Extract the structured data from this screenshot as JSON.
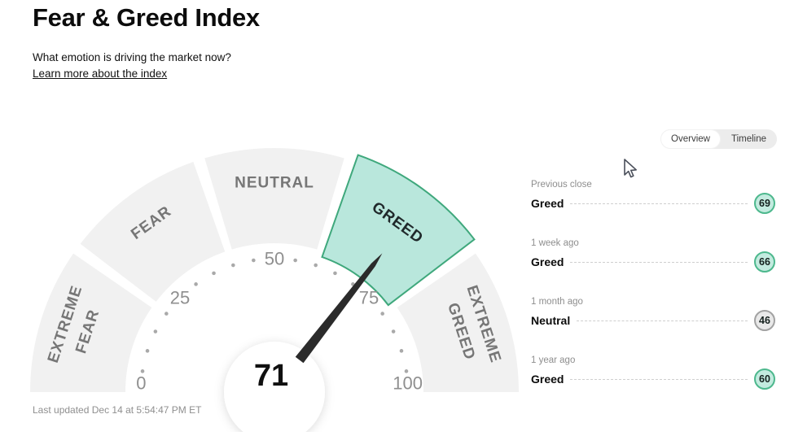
{
  "header": {
    "title": "Fear & Greed Index",
    "subtitle": "What emotion is driving the market now?",
    "link": "Learn more about the index"
  },
  "view_toggle": {
    "options": [
      "Overview",
      "Timeline"
    ],
    "selected": "Overview"
  },
  "chart_data": {
    "type": "gauge",
    "title": "Fear & Greed Index",
    "value": 71,
    "rating": "Greed",
    "axis": {
      "min": 0,
      "max": 100,
      "tick_numbers": [
        0,
        25,
        50,
        75,
        100
      ],
      "dot_step": 5
    },
    "segments": [
      {
        "label": "Extreme Fear",
        "lines": [
          "EXTREME",
          "FEAR"
        ],
        "highlighted": false
      },
      {
        "label": "Fear",
        "lines": [
          "FEAR"
        ],
        "highlighted": false
      },
      {
        "label": "Neutral",
        "lines": [
          "NEUTRAL"
        ],
        "highlighted": false
      },
      {
        "label": "Greed",
        "lines": [
          "GREED"
        ],
        "highlighted": true
      },
      {
        "label": "Extreme Greed",
        "lines": [
          "EXTREME",
          "GREED"
        ],
        "highlighted": false
      }
    ]
  },
  "history": {
    "rows": [
      {
        "label": "Previous close",
        "rating": "Greed",
        "value": 69,
        "tone": "greed"
      },
      {
        "label": "1 week ago",
        "rating": "Greed",
        "value": 66,
        "tone": "greed"
      },
      {
        "label": "1 month ago",
        "rating": "Neutral",
        "value": 46,
        "tone": "neutral"
      },
      {
        "label": "1 year ago",
        "rating": "Greed",
        "value": 60,
        "tone": "greed"
      }
    ]
  },
  "footer": {
    "last_updated": "Last updated Dec 14 at 5:54:47 PM ET"
  },
  "colors": {
    "band": "#f1f1f1",
    "greed_fill": "#b9e7dc",
    "greed_border": "#3fa87c",
    "segment_label": "#767676",
    "segment_label_active": "#20292b",
    "needle": "#2b2b2b",
    "dot": "#a9a9a9",
    "badge_greed_fill": "#c3ebdf",
    "badge_greed_border": "#4db88d",
    "badge_neutral_fill": "#e9e9e9",
    "badge_neutral_border": "#a2a2a2"
  }
}
